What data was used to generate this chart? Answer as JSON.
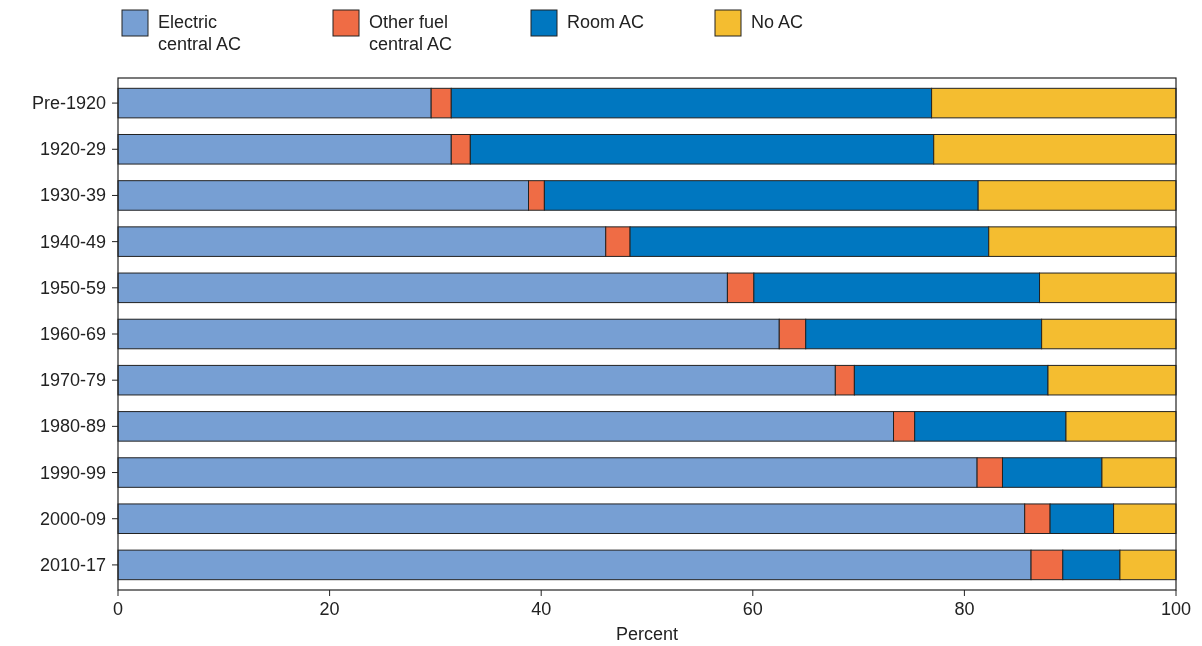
{
  "chart_data": {
    "type": "bar",
    "orientation": "horizontal",
    "stacked": true,
    "xlabel": "Percent",
    "legend": "top",
    "grid": false,
    "categories": [
      "Pre-1920",
      "1920-29",
      "1930-39",
      "1940-49",
      "1950-59",
      "1960-69",
      "1970-79",
      "1980-89",
      "1990-99",
      "2000-09",
      "2010-17"
    ],
    "xlim": [
      0,
      100
    ],
    "xticks": [
      0,
      20,
      40,
      60,
      80,
      100
    ],
    "series": [
      {
        "name": "Electric central AC",
        "color": "#779fd3",
        "values": [
          29.6,
          31.5,
          38.8,
          46.1,
          57.6,
          62.5,
          67.8,
          73.3,
          81.2,
          85.7,
          86.3
        ]
      },
      {
        "name": "Other fuel central AC",
        "color": "#ef6c45",
        "values": [
          1.9,
          1.8,
          1.5,
          2.3,
          2.5,
          2.5,
          1.8,
          2.0,
          2.4,
          2.4,
          3.0
        ]
      },
      {
        "name": "Room AC",
        "color": "#0077c0",
        "values": [
          45.4,
          43.8,
          41.0,
          33.9,
          27.0,
          22.3,
          18.3,
          14.3,
          9.4,
          6.0,
          5.4
        ]
      },
      {
        "name": "No AC",
        "color": "#f4bd30",
        "values": [
          23.1,
          22.9,
          18.7,
          17.7,
          12.9,
          12.7,
          12.1,
          10.4,
          7.0,
          5.9,
          5.3
        ]
      }
    ]
  }
}
